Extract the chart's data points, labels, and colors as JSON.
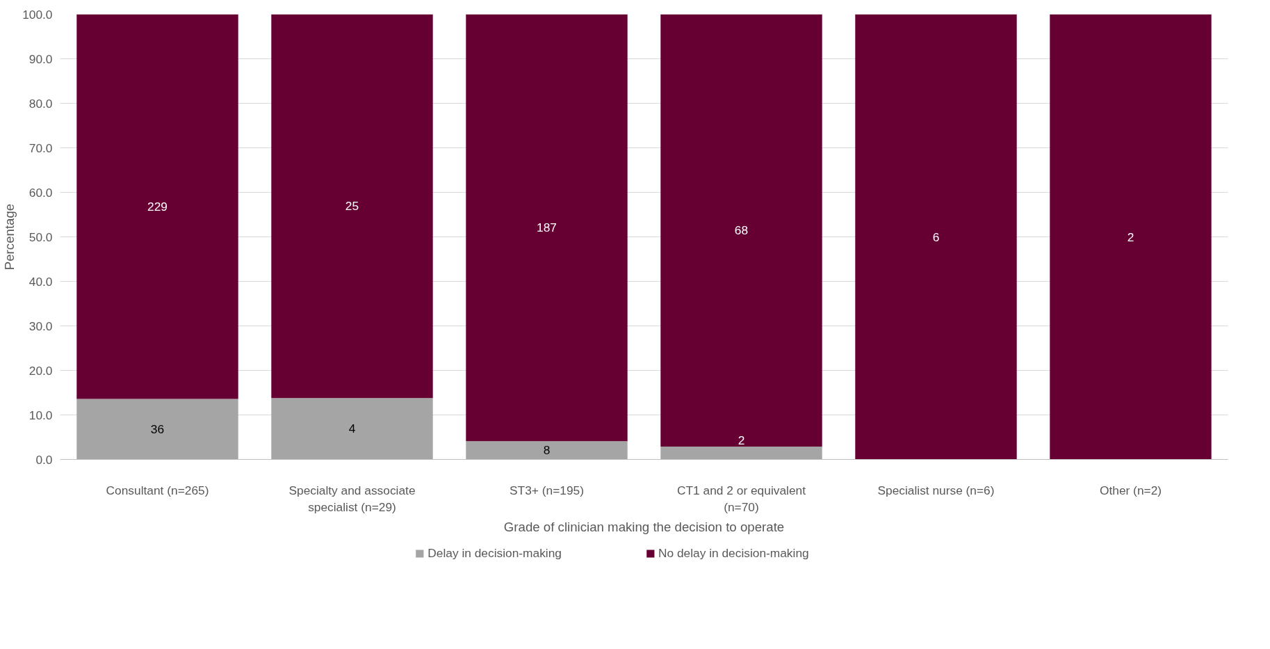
{
  "chart_data": {
    "type": "bar",
    "stacked": true,
    "xlabel": "Grade of clinician making the decision to operate",
    "ylabel": "Percentage",
    "categories": [
      "Consultant (n=265)",
      "Specialty and associate specialist (n=29)",
      "ST3+ (n=195)",
      "CT1 and 2 or equivalent (n=70)",
      "Specialist nurse (n=6)",
      "Other (n=2)"
    ],
    "series": [
      {
        "name": "Delay in decision-making",
        "color": "#a5a5a5",
        "values": [
          13.6,
          13.8,
          4.1,
          2.9,
          0,
          0
        ]
      },
      {
        "name": "No delay in decision-making",
        "color": "#660033",
        "values": [
          86.4,
          86.2,
          95.9,
          97.1,
          100,
          100
        ]
      }
    ],
    "annotations": [
      "36",
      "4",
      "8",
      "2",
      "229",
      "25",
      "187",
      "68",
      "6",
      "2"
    ],
    "ylim": [
      0,
      100
    ],
    "yticks": [
      {
        "value": 0,
        "label": "0.0"
      },
      {
        "value": 10,
        "label": "10.0"
      },
      {
        "value": 20,
        "label": "20.0"
      },
      {
        "value": 30,
        "label": "30.0"
      },
      {
        "value": 40,
        "label": "40.0"
      },
      {
        "value": 50,
        "label": "50.0"
      },
      {
        "value": 60,
        "label": "60.0"
      },
      {
        "value": 70,
        "label": "70.0"
      },
      {
        "value": 80,
        "label": "80.0"
      },
      {
        "value": 90,
        "label": "90.0"
      },
      {
        "value": 100,
        "label": "100.0"
      }
    ],
    "grid": "y",
    "legend": "bottom"
  }
}
